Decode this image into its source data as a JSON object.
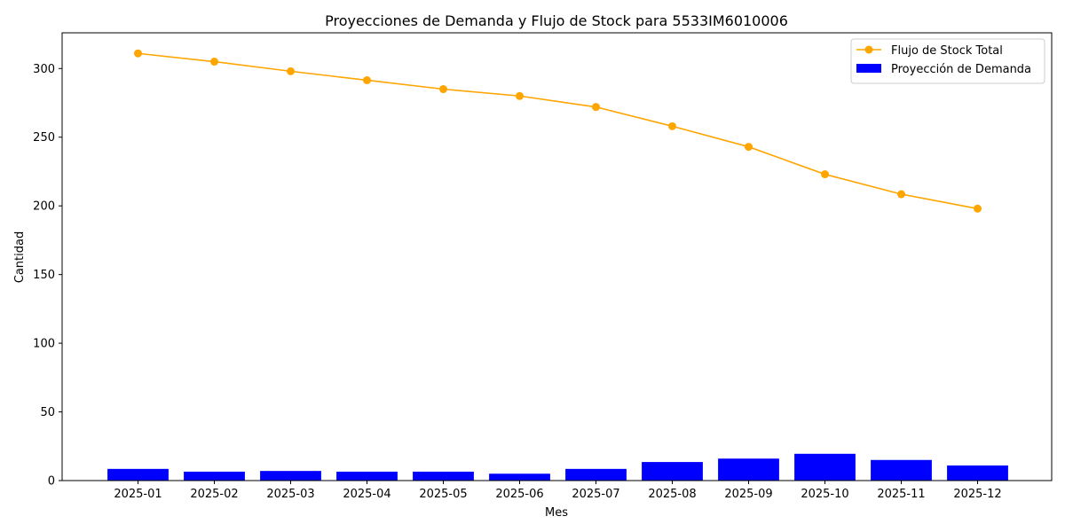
{
  "chart_data": {
    "type": "bar",
    "title": "Proyecciones de Demanda y Flujo de Stock para 5533IM6010006",
    "xlabel": "Mes",
    "ylabel": "Cantidad",
    "categories": [
      "2025-01",
      "2025-02",
      "2025-03",
      "2025-04",
      "2025-05",
      "2025-06",
      "2025-07",
      "2025-08",
      "2025-09",
      "2025-10",
      "2025-11",
      "2025-12"
    ],
    "ylim": [
      0,
      326
    ],
    "yticks": [
      0,
      50,
      100,
      150,
      200,
      250,
      300
    ],
    "grid": false,
    "legend_position": "top-right",
    "series": [
      {
        "name": "Flujo de Stock Total",
        "type": "line",
        "marker": "circle",
        "color": "#ffa500",
        "values": [
          311,
          305,
          298,
          291.5,
          285,
          280,
          272,
          258,
          243,
          223,
          208.5,
          198
        ]
      },
      {
        "name": "Proyección de Demanda",
        "type": "bar",
        "color": "#0000ff",
        "values": [
          8.5,
          6.5,
          7,
          6.5,
          6.5,
          5,
          8.5,
          13.5,
          16,
          19.5,
          15,
          11
        ]
      }
    ]
  }
}
